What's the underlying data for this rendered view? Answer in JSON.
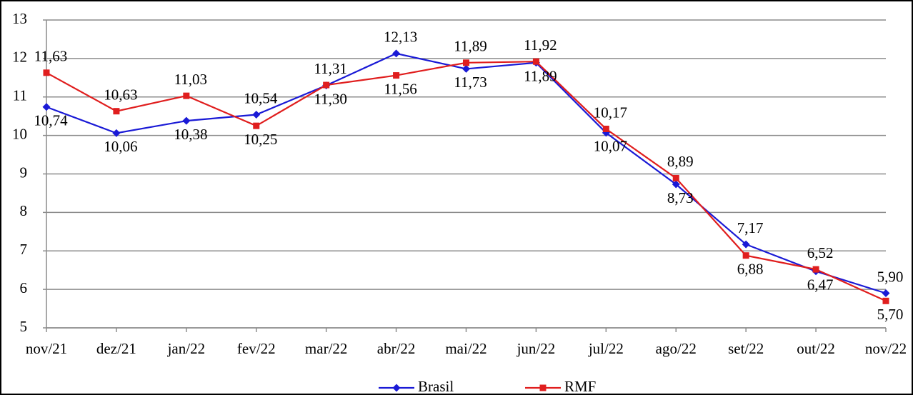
{
  "chart_data": {
    "type": "line",
    "categories": [
      "nov/21",
      "dez/21",
      "jan/22",
      "fev/22",
      "mar/22",
      "abr/22",
      "mai/22",
      "jun/22",
      "jul/22",
      "ago/22",
      "set/22",
      "out/22",
      "nov/22"
    ],
    "series": [
      {
        "name": "Brasil",
        "color": "#1a1ad6",
        "marker": "diamond",
        "values": [
          10.74,
          10.06,
          10.38,
          10.54,
          11.3,
          12.13,
          11.73,
          11.89,
          10.07,
          8.73,
          7.17,
          6.47,
          5.9
        ],
        "value_labels": [
          "10,74",
          "10,06",
          "10,38",
          "10,54",
          "11,30",
          "12,13",
          "11,73",
          "11,89",
          "10,07",
          "8,73",
          "7,17",
          "6,47",
          "5,90"
        ]
      },
      {
        "name": "RMF",
        "color": "#e01e1e",
        "marker": "square",
        "values": [
          11.63,
          10.63,
          11.03,
          10.25,
          11.31,
          11.56,
          11.89,
          11.92,
          10.17,
          8.89,
          6.88,
          6.52,
          5.7
        ],
        "value_labels": [
          "11,63",
          "10,63",
          "11,03",
          "10,25",
          "11,31",
          "11,56",
          "11,89",
          "11,92",
          "10,17",
          "8,89",
          "6,88",
          "6,52",
          "5,70"
        ]
      }
    ],
    "ylim": [
      5,
      13
    ],
    "yticks": [
      5,
      6,
      7,
      8,
      9,
      10,
      11,
      12,
      13
    ],
    "grid": true,
    "legend": "bottom"
  }
}
